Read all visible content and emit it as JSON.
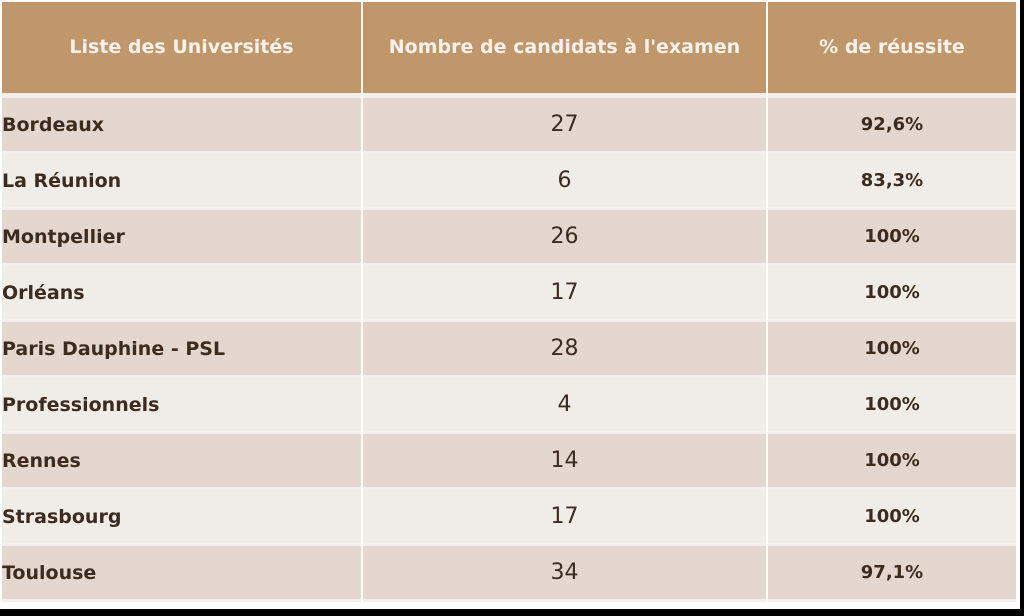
{
  "colors": {
    "header_bg": "#c0976a",
    "header_text": "#f6f1ec",
    "row_dark": "#e3d7cf",
    "row_light": "#f0ece8",
    "body_text": "#3e2b20",
    "grid_line": "#f2efec"
  },
  "table": {
    "headers": [
      "Liste des Universités",
      "Nombre de candidats à l'examen",
      "% de réussite"
    ],
    "rows": [
      {
        "university": "Bordeaux",
        "candidates": "27",
        "success_rate": "92,6%"
      },
      {
        "university": "La Réunion",
        "candidates": "6",
        "success_rate": "83,3%"
      },
      {
        "university": "Montpellier",
        "candidates": "26",
        "success_rate": "100%"
      },
      {
        "university": "Orléans",
        "candidates": "17",
        "success_rate": "100%"
      },
      {
        "university": "Paris Dauphine - PSL",
        "candidates": "28",
        "success_rate": "100%"
      },
      {
        "university": "Professionnels",
        "candidates": "4",
        "success_rate": "100%"
      },
      {
        "university": "Rennes",
        "candidates": "14",
        "success_rate": "100%"
      },
      {
        "university": "Strasbourg",
        "candidates": "17",
        "success_rate": "100%"
      },
      {
        "university": "Toulouse",
        "candidates": "34",
        "success_rate": "97,1%"
      }
    ]
  }
}
